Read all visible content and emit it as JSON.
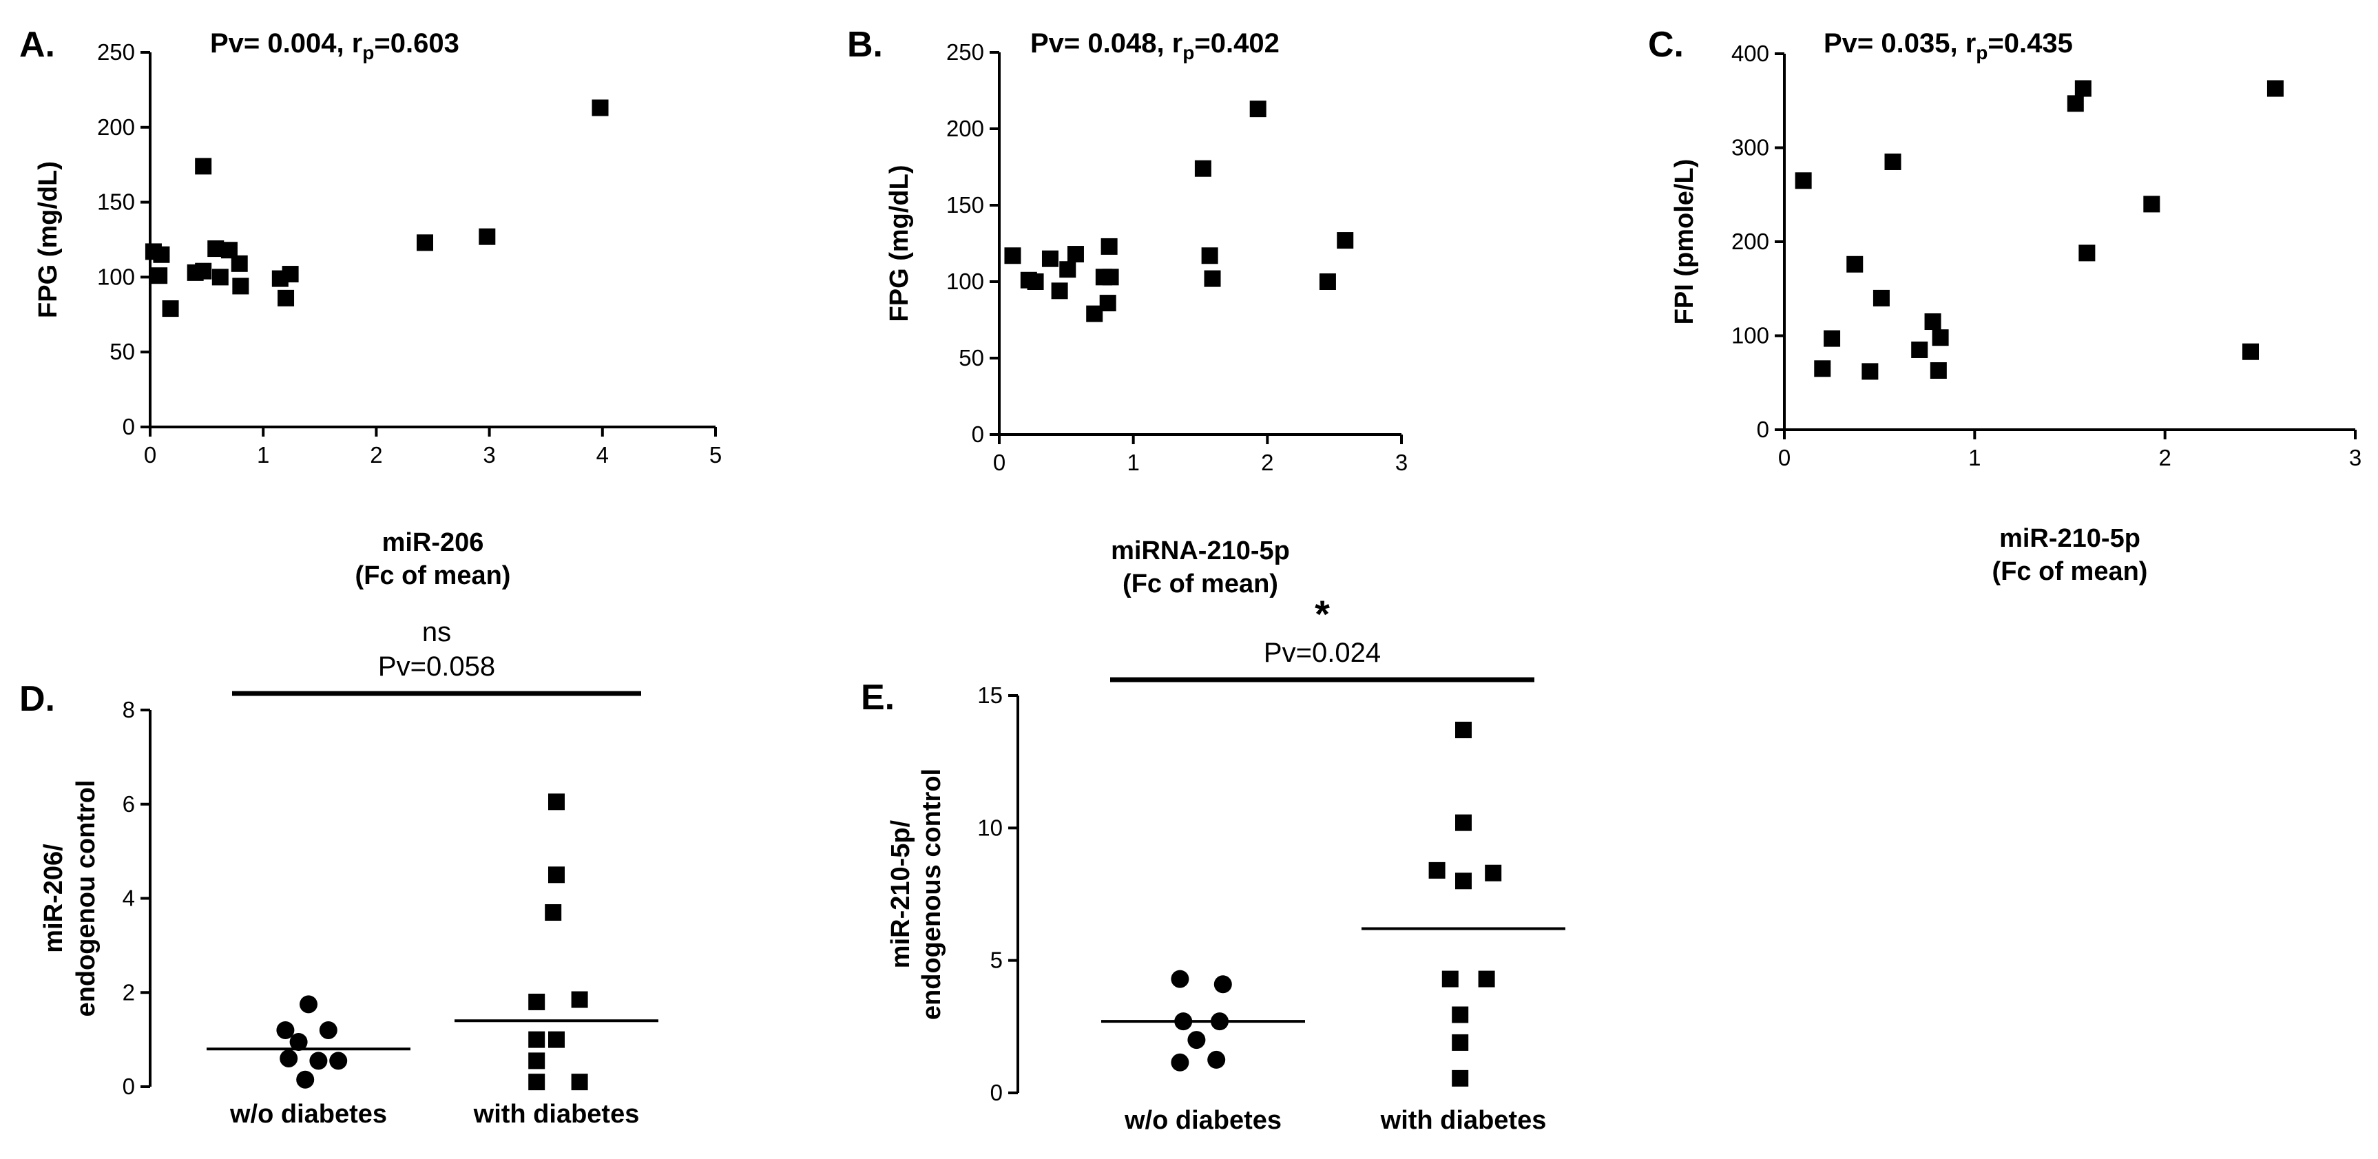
{
  "chart_data": [
    {
      "id": "A",
      "type": "scatter",
      "panel_label": "A.",
      "title": "",
      "annotation": {
        "pv": "Pv= 0.004, r",
        "sub": "p",
        "r": "=0.603"
      },
      "xlabel_lines": [
        "miR-206",
        "(Fc of mean)"
      ],
      "ylabel": "FPG (mg/dL)",
      "xlim": [
        0,
        5
      ],
      "ylim": [
        0,
        250
      ],
      "xticks": [
        0,
        1,
        2,
        3,
        4,
        5
      ],
      "yticks": [
        0,
        50,
        100,
        150,
        200,
        250
      ],
      "marker": "square",
      "points": [
        {
          "x": 0.03,
          "y": 117
        },
        {
          "x": 0.08,
          "y": 101
        },
        {
          "x": 0.1,
          "y": 115
        },
        {
          "x": 0.18,
          "y": 79
        },
        {
          "x": 0.4,
          "y": 103
        },
        {
          "x": 0.47,
          "y": 104
        },
        {
          "x": 0.47,
          "y": 174
        },
        {
          "x": 0.58,
          "y": 119
        },
        {
          "x": 0.62,
          "y": 100
        },
        {
          "x": 0.7,
          "y": 118
        },
        {
          "x": 0.79,
          "y": 109
        },
        {
          "x": 0.8,
          "y": 94
        },
        {
          "x": 1.15,
          "y": 99
        },
        {
          "x": 1.2,
          "y": 86
        },
        {
          "x": 1.24,
          "y": 102
        },
        {
          "x": 2.43,
          "y": 123
        },
        {
          "x": 2.98,
          "y": 127
        },
        {
          "x": 3.98,
          "y": 213
        }
      ]
    },
    {
      "id": "B",
      "type": "scatter",
      "panel_label": "B.",
      "title": "",
      "annotation": {
        "pv": "Pv= 0.048, r",
        "sub": "p",
        "r": "=0.402"
      },
      "xlabel_lines": [
        "miRNA-210-5p",
        "(Fc of mean)"
      ],
      "ylabel": "FPG (mg/dL)",
      "xlim": [
        0,
        3
      ],
      "ylim": [
        0,
        250
      ],
      "xticks": [
        0,
        1,
        2,
        3
      ],
      "yticks": [
        0,
        50,
        100,
        150,
        200,
        250
      ],
      "marker": "square",
      "points": [
        {
          "x": 0.1,
          "y": 117
        },
        {
          "x": 0.22,
          "y": 101
        },
        {
          "x": 0.27,
          "y": 100
        },
        {
          "x": 0.38,
          "y": 115
        },
        {
          "x": 0.45,
          "y": 94
        },
        {
          "x": 0.51,
          "y": 108
        },
        {
          "x": 0.57,
          "y": 118
        },
        {
          "x": 0.71,
          "y": 79
        },
        {
          "x": 0.78,
          "y": 103
        },
        {
          "x": 0.81,
          "y": 86
        },
        {
          "x": 0.82,
          "y": 123
        },
        {
          "x": 0.83,
          "y": 103
        },
        {
          "x": 1.52,
          "y": 174
        },
        {
          "x": 1.57,
          "y": 117
        },
        {
          "x": 1.59,
          "y": 102
        },
        {
          "x": 1.93,
          "y": 213
        },
        {
          "x": 2.45,
          "y": 100
        },
        {
          "x": 2.58,
          "y": 127
        }
      ]
    },
    {
      "id": "C",
      "type": "scatter",
      "panel_label": "C.",
      "title": "",
      "annotation": {
        "pv": "Pv= 0.035, r",
        "sub": "p",
        "r": "=0.435"
      },
      "xlabel_lines": [
        "miR-210-5p",
        "(Fc of mean)"
      ],
      "ylabel": "FPI (pmole/L)",
      "xlim": [
        0,
        3
      ],
      "ylim": [
        0,
        400
      ],
      "xticks": [
        0,
        1,
        2,
        3
      ],
      "yticks": [
        0,
        100,
        200,
        300,
        400
      ],
      "marker": "square",
      "points": [
        {
          "x": 0.1,
          "y": 265
        },
        {
          "x": 0.2,
          "y": 65
        },
        {
          "x": 0.25,
          "y": 97
        },
        {
          "x": 0.37,
          "y": 176
        },
        {
          "x": 0.45,
          "y": 62
        },
        {
          "x": 0.51,
          "y": 140
        },
        {
          "x": 0.57,
          "y": 285
        },
        {
          "x": 0.71,
          "y": 85
        },
        {
          "x": 0.78,
          "y": 115
        },
        {
          "x": 0.81,
          "y": 63
        },
        {
          "x": 0.82,
          "y": 98
        },
        {
          "x": 1.53,
          "y": 347
        },
        {
          "x": 1.57,
          "y": 363
        },
        {
          "x": 1.59,
          "y": 188
        },
        {
          "x": 1.93,
          "y": 240
        },
        {
          "x": 2.45,
          "y": 83
        },
        {
          "x": 2.58,
          "y": 363
        }
      ]
    },
    {
      "id": "D",
      "type": "dot-scatter",
      "panel_label": "D.",
      "ylabel_lines": [
        "miR-206/",
        "endogenou control"
      ],
      "ylim": [
        0,
        8
      ],
      "yticks": [
        0,
        2,
        4,
        6,
        8
      ],
      "categories": [
        "w/o diabetes",
        "with diabetes"
      ],
      "significance": {
        "label": "ns",
        "pv": "Pv=0.058"
      },
      "groups": [
        {
          "name": "w/o diabetes",
          "marker": "circle",
          "mean": 0.8,
          "points": [
            {
              "dx": 0.0,
              "y": 1.75
            },
            {
              "dx": -0.35,
              "y": 1.2
            },
            {
              "dx": 0.3,
              "y": 1.2
            },
            {
              "dx": -0.15,
              "y": 0.95
            },
            {
              "dx": 0.15,
              "y": 0.55
            },
            {
              "dx": -0.3,
              "y": 0.6
            },
            {
              "dx": 0.45,
              "y": 0.55
            },
            {
              "dx": -0.05,
              "y": 0.15
            }
          ]
        },
        {
          "name": "with diabetes",
          "marker": "square",
          "mean": 1.4,
          "points": [
            {
              "dx": 0.0,
              "y": 6.05
            },
            {
              "dx": 0.0,
              "y": 4.5
            },
            {
              "dx": -0.05,
              "y": 3.7
            },
            {
              "dx": -0.3,
              "y": 1.8
            },
            {
              "dx": 0.35,
              "y": 1.85
            },
            {
              "dx": -0.3,
              "y": 1.0
            },
            {
              "dx": 0.0,
              "y": 1.0
            },
            {
              "dx": -0.3,
              "y": 0.55
            },
            {
              "dx": -0.3,
              "y": 0.1
            },
            {
              "dx": 0.35,
              "y": 0.1
            }
          ]
        }
      ]
    },
    {
      "id": "E",
      "type": "dot-scatter",
      "panel_label": "E.",
      "ylabel_lines": [
        "miR-210-5p/",
        "endogenous control"
      ],
      "ylim": [
        0,
        15
      ],
      "yticks": [
        0,
        5,
        10,
        15
      ],
      "categories": [
        "w/o diabetes",
        "with diabetes"
      ],
      "significance": {
        "label": "*",
        "pv": "Pv=0.024"
      },
      "groups": [
        {
          "name": "w/o diabetes",
          "marker": "circle",
          "mean": 2.7,
          "points": [
            {
              "dx": -0.35,
              "y": 4.3
            },
            {
              "dx": 0.3,
              "y": 4.1
            },
            {
              "dx": -0.3,
              "y": 2.7
            },
            {
              "dx": 0.25,
              "y": 2.7
            },
            {
              "dx": -0.1,
              "y": 2.0
            },
            {
              "dx": -0.35,
              "y": 1.15
            },
            {
              "dx": 0.2,
              "y": 1.25
            }
          ]
        },
        {
          "name": "with diabetes",
          "marker": "square",
          "mean": 6.2,
          "points": [
            {
              "dx": 0.0,
              "y": 13.7
            },
            {
              "dx": 0.0,
              "y": 10.2
            },
            {
              "dx": -0.4,
              "y": 8.4
            },
            {
              "dx": 0.0,
              "y": 8.0
            },
            {
              "dx": 0.45,
              "y": 8.3
            },
            {
              "dx": -0.2,
              "y": 4.3
            },
            {
              "dx": 0.35,
              "y": 4.3
            },
            {
              "dx": -0.05,
              "y": 2.95
            },
            {
              "dx": -0.05,
              "y": 1.9
            },
            {
              "dx": -0.05,
              "y": 0.55
            }
          ]
        }
      ]
    }
  ]
}
